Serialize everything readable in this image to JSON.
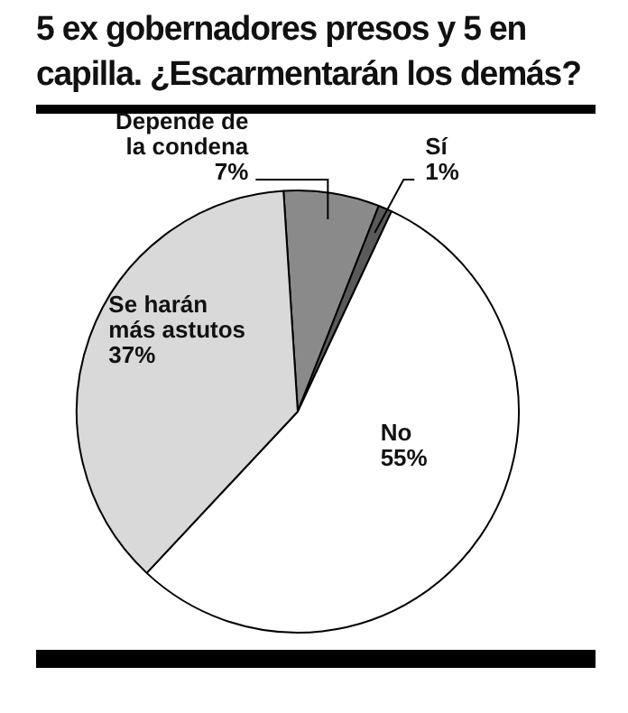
{
  "chart_data": {
    "type": "pie",
    "title": "5 ex gobernadores presos y 5 en capilla. ¿Escarmentarán  los demás?",
    "categories": [
      "Depende de la condena",
      "Sí",
      "No",
      "Se harán más astutos"
    ],
    "values": [
      7,
      1,
      55,
      37
    ],
    "value_labels": [
      "7%",
      "1%",
      "55%",
      "37%"
    ],
    "colors": [
      "#8a8a8a",
      "#5a5a5a",
      "#ffffff",
      "#d9d9d9"
    ],
    "legend": false
  }
}
